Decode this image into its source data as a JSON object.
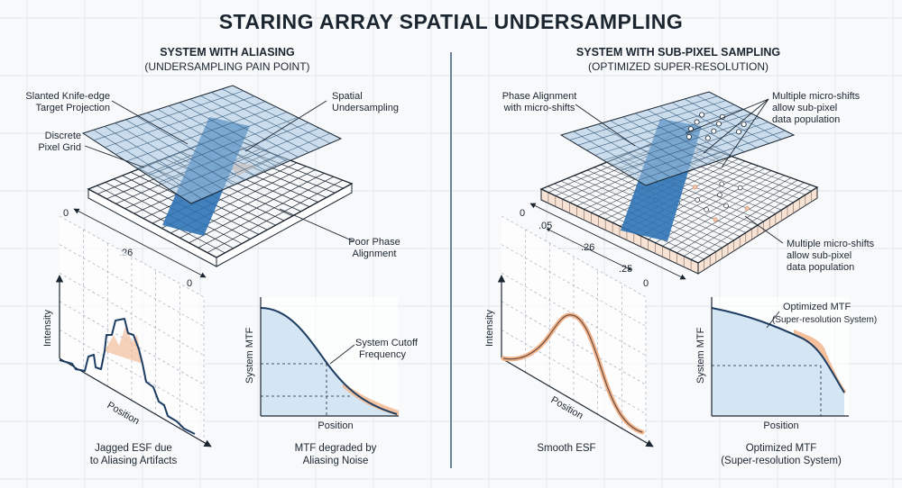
{
  "title": "STARING ARRAY SPATIAL UNDERSAMPLING",
  "left": {
    "heading": "SYSTEM WITH ALIASING",
    "subheading": "(UNDERSAMPLING PAIN POINT)",
    "labels": {
      "knife_edge": [
        "Slanted Knife-edge",
        "Target Projection"
      ],
      "spatial": [
        "Spatial",
        "Undersampling"
      ],
      "pixel_grid": [
        "Discrete",
        "Pixel Grid"
      ],
      "phase": [
        "Poor Phase",
        "Alignment"
      ]
    },
    "dims": {
      "d0a": "0",
      "d26": ".26",
      "d0b": "0"
    },
    "esf": {
      "ylabel": "Intensity",
      "xlabel": "Position",
      "caption": [
        "Jagged ESF due",
        "to Aliasing Artifacts"
      ]
    },
    "mtf": {
      "ylabel": "System MTF",
      "xlabel": "Position",
      "annotation": [
        "System Cutoff",
        "Frequency"
      ],
      "caption": [
        "MTF degraded by",
        "Aliasing Noise"
      ]
    }
  },
  "right": {
    "heading": "SYSTEM WITH SUB-PIXEL SAMPLING",
    "subheading": "(OPTIMIZED SUPER-RESOLUTION)",
    "labels": {
      "phase": [
        "Phase Alignment",
        "with micro-shifts"
      ],
      "micro_top": [
        "Multiple micro-shifts",
        "allow sub-pixel",
        "data population"
      ],
      "micro_bottom": [
        "Multiple micro-shifts",
        "allow sub-pixel",
        "data population"
      ]
    },
    "dims": {
      "d0a": "0",
      "d05": ".05",
      "d26": ".26",
      "d25": ".25",
      "d0b": "0"
    },
    "esf": {
      "ylabel": "Intensity",
      "xlabel": "Position",
      "caption": [
        "Smooth ESF"
      ]
    },
    "mtf": {
      "ylabel": "System MTF",
      "xlabel": "Position",
      "annotation": [
        "Optimized MTF",
        "(Super-resolution System)"
      ],
      "caption": [
        "Optimized MTF",
        "(Super-resolution System)"
      ]
    }
  },
  "colors": {
    "ink": "#1b2530",
    "plane_fill": "#a9c8e2",
    "knife_edge": "#2f73b5",
    "curve_fill": "#d4e6f4",
    "orange_band": "#f2b48a"
  }
}
